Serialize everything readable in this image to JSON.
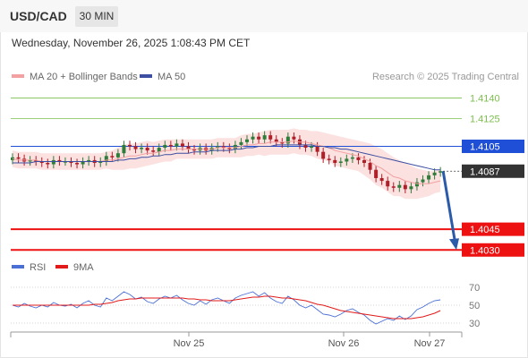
{
  "header": {
    "pair": "USD/CAD",
    "interval": "30 MIN"
  },
  "datetime": "Wednesday, November 26, 2025 1:08:43 PM CET",
  "copyright": "Research © 2025 Trading Central",
  "colors": {
    "green": "#7cbf4d",
    "blue": "#1f4fd6",
    "red": "#ee1111",
    "dark": "#333333",
    "rsi": "#4a6fd6",
    "rsi_ma": "#e21a1a",
    "ma20": "#f2a0a0",
    "ma50": "#3d4fa0",
    "bull": "#2e7d3a",
    "bear": "#b01f28",
    "band": "#fbd7d7",
    "arrow": "#2a5aa8"
  },
  "chart_data": [
    {
      "type": "candlestick",
      "legend": [
        {
          "name": "MA 20 + Bollinger Bands",
          "color": "#f2a0a0"
        },
        {
          "name": "MA 50",
          "color": "#3d4fa0"
        }
      ],
      "x_tick_labels": [
        "Nov 25",
        "Nov 26",
        "Nov 27"
      ],
      "levels": [
        {
          "value": 1.414,
          "label": "1.4140",
          "kind": "resistance"
        },
        {
          "value": 1.4125,
          "label": "1.4125",
          "kind": "resistance"
        },
        {
          "value": 1.4105,
          "label": "1.4105",
          "kind": "pivot"
        },
        {
          "value": 1.4087,
          "label": "1.4087",
          "kind": "last"
        },
        {
          "value": 1.4045,
          "label": "1.4045",
          "kind": "support"
        },
        {
          "value": 1.403,
          "label": "1.4030",
          "kind": "support"
        }
      ],
      "ylim": [
        1.4025,
        1.415
      ],
      "closes": [
        1.4097,
        1.4096,
        1.4094,
        1.4095,
        1.4094,
        1.4093,
        1.4092,
        1.4095,
        1.4094,
        1.4094,
        1.4093,
        1.4092,
        1.4094,
        1.4095,
        1.4093,
        1.4094,
        1.4098,
        1.4097,
        1.41,
        1.4106,
        1.4105,
        1.4103,
        1.4104,
        1.4102,
        1.4101,
        1.4104,
        1.4106,
        1.4105,
        1.4107,
        1.4105,
        1.4103,
        1.4102,
        1.4104,
        1.4102,
        1.4104,
        1.4105,
        1.4104,
        1.4103,
        1.4106,
        1.4108,
        1.411,
        1.4112,
        1.411,
        1.4113,
        1.411,
        1.4108,
        1.4107,
        1.4112,
        1.411,
        1.4106,
        1.4104,
        1.4105,
        1.4101,
        1.4096,
        1.4095,
        1.4093,
        1.4094,
        1.4096,
        1.4097,
        1.4095,
        1.4093,
        1.4088,
        1.4082,
        1.408,
        1.4076,
        1.4075,
        1.4077,
        1.4074,
        1.4076,
        1.4079,
        1.4081,
        1.4084,
        1.4086,
        1.4087
      ],
      "ma20": [
        1.4096,
        1.4095,
        1.4095,
        1.4095,
        1.4095,
        1.4094,
        1.4094,
        1.4094,
        1.4094,
        1.4094,
        1.4094,
        1.4094,
        1.4094,
        1.4094,
        1.4094,
        1.4094,
        1.4095,
        1.4095,
        1.4096,
        1.4097,
        1.4098,
        1.4098,
        1.4099,
        1.41,
        1.41,
        1.4101,
        1.4102,
        1.4102,
        1.4103,
        1.4103,
        1.4103,
        1.4103,
        1.4103,
        1.4103,
        1.4103,
        1.4104,
        1.4104,
        1.4104,
        1.4104,
        1.4105,
        1.4106,
        1.4106,
        1.4107,
        1.4107,
        1.4108,
        1.4108,
        1.4108,
        1.4108,
        1.4109,
        1.4108,
        1.4108,
        1.4107,
        1.4106,
        1.4105,
        1.4104,
        1.4102,
        1.4101,
        1.41,
        1.4099,
        1.4098,
        1.4096,
        1.4094,
        1.4091,
        1.4089,
        1.4086,
        1.4083,
        1.4082,
        1.408,
        1.4079,
        1.4078,
        1.4078,
        1.4078,
        1.4079,
        1.408
      ],
      "ma50": [
        1.4093,
        1.4093,
        1.4093,
        1.4093,
        1.4094,
        1.4094,
        1.4094,
        1.4094,
        1.4094,
        1.4094,
        1.4094,
        1.4094,
        1.4094,
        1.4094,
        1.4094,
        1.4094,
        1.4094,
        1.4094,
        1.4095,
        1.4095,
        1.4096,
        1.4096,
        1.4097,
        1.4097,
        1.4098,
        1.4098,
        1.4099,
        1.4099,
        1.41,
        1.41,
        1.41,
        1.4101,
        1.4101,
        1.4101,
        1.4102,
        1.4102,
        1.4102,
        1.4102,
        1.4103,
        1.4103,
        1.4104,
        1.4104,
        1.4105,
        1.4105,
        1.4105,
        1.4106,
        1.4106,
        1.4106,
        1.4106,
        1.4106,
        1.4106,
        1.4106,
        1.4105,
        1.4105,
        1.4104,
        1.4104,
        1.4103,
        1.4103,
        1.4102,
        1.4101,
        1.41,
        1.4099,
        1.4098,
        1.4097,
        1.4096,
        1.4095,
        1.4094,
        1.4093,
        1.4092,
        1.4091,
        1.409,
        1.4089,
        1.4088,
        1.4088
      ],
      "band_width": [
        0.0006,
        0.0006,
        0.0006,
        0.0006,
        0.0006,
        0.0006,
        0.0006,
        0.0006,
        0.0006,
        0.0006,
        0.0006,
        0.0006,
        0.0006,
        0.0006,
        0.0006,
        0.0006,
        0.0006,
        0.0007,
        0.0008,
        0.0009,
        0.0009,
        0.0009,
        0.0009,
        0.0009,
        0.0008,
        0.0008,
        0.0008,
        0.0008,
        0.0007,
        0.0007,
        0.0007,
        0.0007,
        0.0007,
        0.0007,
        0.0007,
        0.0007,
        0.0007,
        0.0007,
        0.0007,
        0.0008,
        0.0008,
        0.0008,
        0.0008,
        0.0009,
        0.0009,
        0.0009,
        0.0009,
        0.0009,
        0.0009,
        0.0009,
        0.0009,
        0.0009,
        0.001,
        0.001,
        0.001,
        0.0011,
        0.0011,
        0.0011,
        0.0011,
        0.0011,
        0.0012,
        0.0013,
        0.0014,
        0.0014,
        0.0014,
        0.0014,
        0.0013,
        0.0013,
        0.0012,
        0.0011,
        0.001,
        0.0009,
        0.0008,
        0.0008
      ],
      "forecast": {
        "from": 1.4087,
        "to": 1.403
      }
    },
    {
      "type": "line",
      "legend": [
        {
          "name": "RSI",
          "color": "#4a6fd6"
        },
        {
          "name": "9MA",
          "color": "#e21a1a"
        }
      ],
      "y_ticks": [
        70,
        50,
        30
      ],
      "ylim": [
        25,
        78
      ],
      "rsi": [
        50,
        48,
        52,
        49,
        47,
        50,
        48,
        53,
        50,
        49,
        51,
        47,
        52,
        55,
        50,
        48,
        58,
        55,
        60,
        65,
        62,
        57,
        59,
        54,
        52,
        57,
        60,
        58,
        61,
        56,
        52,
        50,
        55,
        51,
        56,
        58,
        55,
        52,
        58,
        61,
        63,
        65,
        60,
        64,
        58,
        54,
        52,
        60,
        56,
        50,
        47,
        50,
        45,
        40,
        39,
        37,
        40,
        44,
        46,
        42,
        39,
        33,
        29,
        32,
        35,
        33,
        38,
        34,
        38,
        45,
        48,
        52,
        55,
        56
      ],
      "rsi_ma": [
        50,
        50,
        50,
        50,
        50,
        50,
        50,
        50,
        50,
        50,
        50,
        50,
        50,
        50,
        51,
        51,
        52,
        53,
        55,
        56,
        57,
        57,
        58,
        58,
        58,
        58,
        58,
        58,
        58,
        58,
        57,
        57,
        56,
        56,
        55,
        55,
        55,
        55,
        56,
        57,
        58,
        59,
        59,
        60,
        60,
        59,
        58,
        58,
        57,
        56,
        55,
        53,
        51,
        50,
        48,
        46,
        44,
        43,
        42,
        41,
        40,
        39,
        38,
        37,
        36,
        35,
        35,
        35,
        35,
        36,
        37,
        39,
        41,
        44
      ]
    }
  ]
}
